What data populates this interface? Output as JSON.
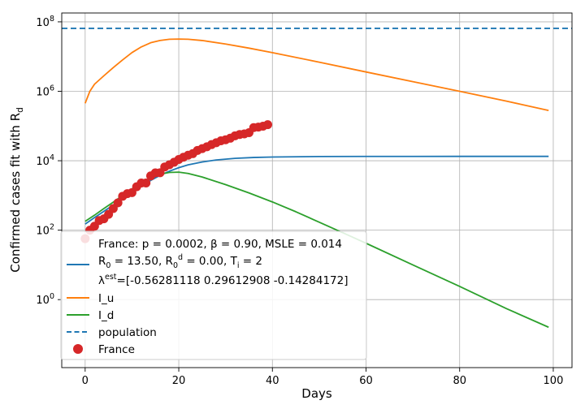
{
  "chart_data": {
    "type": "line",
    "title": "",
    "xlabel": "Days",
    "ylabel": {
      "main": "Confirmed cases fit with R",
      "sub": "d"
    },
    "y_scale": "log",
    "xlim": [
      -5,
      104
    ],
    "ylim": [
      0.011,
      180000000
    ],
    "x_ticks": [
      0,
      20,
      40,
      60,
      80,
      100
    ],
    "y_ticks": [
      {
        "value": 1,
        "base": "10",
        "exp": "0"
      },
      {
        "value": 100,
        "base": "10",
        "exp": "2"
      },
      {
        "value": 10000,
        "base": "10",
        "exp": "4"
      },
      {
        "value": 1000000,
        "base": "10",
        "exp": "6"
      },
      {
        "value": 100000000,
        "base": "10",
        "exp": "8"
      }
    ],
    "grid": true,
    "legend_position": "lower-left",
    "legend": {
      "header": "France: p = 0.0002,  β =  0.90, MSLE = 0.014",
      "r0_line": {
        "r0": " R = 13.50, R = 0.00, T = 2",
        "parts": [
          {
            "t": " R",
            "k": "n"
          },
          {
            "t": "0",
            "k": "sub"
          },
          {
            "t": " = 13.50, R",
            "k": "n"
          },
          {
            "t": "0",
            "k": "sub"
          },
          {
            "t": "d",
            "k": "sup"
          },
          {
            "t": " = 0.00, T",
            "k": "n"
          },
          {
            "t": "i",
            "k": "sub"
          },
          {
            "t": " = 2",
            "k": "n"
          }
        ]
      },
      "lambda_line": {
        "parts": [
          {
            "t": "λ",
            "k": "n"
          },
          {
            "t": "est",
            "k": "sup"
          },
          {
            "t": "=[-0.56281118  0.29612908 -0.14284172]",
            "k": "n"
          }
        ]
      },
      "iu": "I_u",
      "id": "I_d",
      "population": "population",
      "france": "France"
    },
    "colors": {
      "fit": "#1f77b4",
      "iu": "#ff7f0e",
      "id": "#2ca02c",
      "population": "#1f77b4",
      "france": "#d62728"
    },
    "series": [
      {
        "key": "fit",
        "style": "solid",
        "x": [
          0,
          2,
          4,
          6,
          8,
          10,
          12,
          14,
          16,
          18,
          20,
          22,
          25,
          28,
          32,
          36,
          40,
          50,
          60,
          80,
          99
        ],
        "y": [
          150,
          230,
          350,
          530,
          800,
          1200,
          1800,
          2700,
          3800,
          5000,
          6300,
          7600,
          9200,
          10500,
          11700,
          12400,
          12800,
          13200,
          13300,
          13350,
          13350
        ]
      },
      {
        "key": "iu",
        "style": "solid",
        "x": [
          0,
          1,
          2,
          4,
          6,
          8,
          10,
          12,
          14,
          16,
          18,
          20,
          22,
          25,
          30,
          35,
          40,
          50,
          60,
          70,
          80,
          90,
          99
        ],
        "y": [
          450000,
          1000000,
          1600000,
          2800000,
          4800000,
          8000000,
          13000000,
          19000000,
          25000000,
          29000000,
          31500000,
          32000000,
          31500000,
          29000000,
          23000000,
          17500000,
          13000000,
          6900000,
          3600000,
          1900000,
          1000000,
          520000,
          280000
        ]
      },
      {
        "key": "id",
        "style": "solid",
        "x": [
          0,
          2,
          4,
          6,
          8,
          10,
          12,
          14,
          16,
          18,
          20,
          22,
          25,
          30,
          35,
          40,
          45,
          50,
          55,
          60,
          70,
          80,
          90,
          99
        ],
        "y": [
          180,
          270,
          420,
          640,
          1000,
          1550,
          2300,
          3200,
          4100,
          4600,
          4700,
          4300,
          3400,
          2050,
          1180,
          650,
          340,
          170,
          85,
          42,
          10,
          2.4,
          0.55,
          0.16
        ]
      },
      {
        "key": "population",
        "style": "dashed",
        "x": [
          -5,
          104
        ],
        "y": [
          65000000,
          65000000
        ]
      },
      {
        "key": "france",
        "style": "markers",
        "x": [
          0,
          1,
          2,
          3,
          4,
          5,
          6,
          7,
          8,
          9,
          10,
          11,
          12,
          13,
          14,
          15,
          16,
          17,
          18,
          19,
          20,
          21,
          22,
          23,
          24,
          25,
          26,
          27,
          28,
          29,
          30,
          31,
          32,
          33,
          34,
          35,
          36,
          37,
          38,
          39
        ],
        "y": [
          57,
          100,
          130,
          190,
          212,
          285,
          420,
          613,
          949,
          1126,
          1209,
          1784,
          2281,
          2281,
          3661,
          4469,
          4499,
          6633,
          7652,
          9043,
          10871,
          12612,
          14459,
          16018,
          19856,
          22304,
          25233,
          29155,
          32964,
          37575,
          40174,
          44550,
          52128,
          56989,
          59105,
          64338,
          89953,
          92839,
          98963,
          109069
        ]
      }
    ]
  }
}
